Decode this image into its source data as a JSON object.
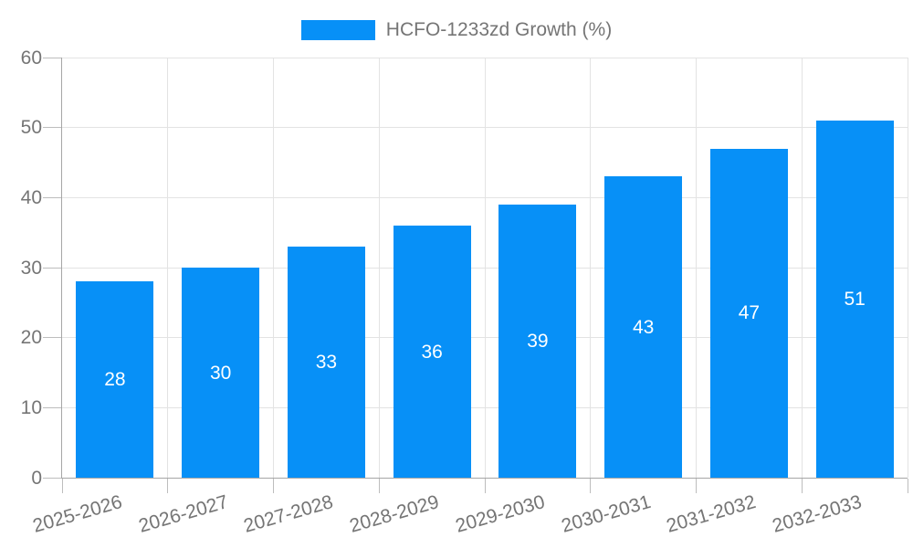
{
  "colors": {
    "bar": "#0790f7",
    "axis": "#a6a6a6",
    "grid": "#e3e3e3",
    "tick": "#bdbdbd",
    "text": "#757575",
    "bar_label_text": "#ffffff",
    "background": "#ffffff"
  },
  "legend": {
    "label": "HCFO-1233zd Growth (%)"
  },
  "chart_data": {
    "type": "bar",
    "title": "",
    "xlabel": "",
    "ylabel": "",
    "legend_label": "HCFO-1233zd Growth (%)",
    "legend_position": "top-center",
    "categories": [
      "2025-2026",
      "2026-2027",
      "2027-2028",
      "2028-2029",
      "2029-2030",
      "2030-2031",
      "2031-2032",
      "2032-2033"
    ],
    "values": [
      28,
      30,
      33,
      36,
      39,
      43,
      47,
      51
    ],
    "bar_value_labels": [
      "28",
      "30",
      "33",
      "36",
      "39",
      "43",
      "47",
      "51"
    ],
    "ylim": [
      0,
      60
    ],
    "ytick_step": 10,
    "ytick_labels": [
      "0",
      "10",
      "20",
      "30",
      "40",
      "50",
      "60"
    ],
    "grid": true,
    "x_label_rotation_deg": -16
  }
}
